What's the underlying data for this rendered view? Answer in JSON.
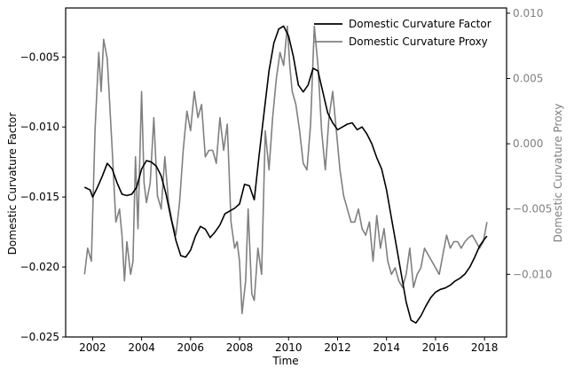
{
  "chart_data": {
    "type": "line",
    "xlabel": "Time",
    "ylabel_left": "Domestic Curvature Factor",
    "ylabel_right": "Domestic Curvature Proxy",
    "xlim": [
      2000.9,
      2018.9
    ],
    "ylim_left": [
      -0.025,
      -0.0015
    ],
    "ylim_right": [
      -0.0148,
      0.0104
    ],
    "x_ticks": [
      2002,
      2004,
      2006,
      2008,
      2010,
      2012,
      2014,
      2016,
      2018
    ],
    "x_tick_labels": [
      "2002",
      "2004",
      "2006",
      "2008",
      "2010",
      "2012",
      "2014",
      "2016",
      "2018"
    ],
    "y_left_ticks": [
      -0.025,
      -0.02,
      -0.015,
      -0.01,
      -0.005
    ],
    "y_left_tick_labels": [
      "−0.025",
      "−0.020",
      "−0.015",
      "−0.010",
      "−0.005"
    ],
    "y_right_ticks": [
      -0.01,
      -0.005,
      0.0,
      0.005,
      0.01
    ],
    "y_right_tick_labels": [
      "−0.010",
      "−0.005",
      "0.000",
      "0.005",
      "0.010"
    ],
    "grid": false,
    "legend_position": "top-right",
    "colors": {
      "factor": "#000000",
      "proxy": "#808080",
      "right_axis_text": "#808080"
    },
    "series": [
      {
        "name": "Domestic Curvature Factor",
        "axis": "left",
        "x": [
          2001.67,
          2001.9,
          2002.0,
          2002.2,
          2002.4,
          2002.6,
          2002.8,
          2003.0,
          2003.2,
          2003.4,
          2003.6,
          2003.8,
          2004.0,
          2004.2,
          2004.4,
          2004.6,
          2004.8,
          2005.0,
          2005.2,
          2005.4,
          2005.6,
          2005.8,
          2006.0,
          2006.2,
          2006.4,
          2006.6,
          2006.8,
          2007.0,
          2007.2,
          2007.4,
          2007.6,
          2007.8,
          2008.0,
          2008.2,
          2008.4,
          2008.6,
          2008.8,
          2009.0,
          2009.2,
          2009.4,
          2009.6,
          2009.8,
          2010.0,
          2010.2,
          2010.4,
          2010.6,
          2010.8,
          2011.0,
          2011.2,
          2011.4,
          2011.6,
          2011.8,
          2012.0,
          2012.2,
          2012.4,
          2012.6,
          2012.8,
          2013.0,
          2013.2,
          2013.4,
          2013.6,
          2013.8,
          2014.0,
          2014.2,
          2014.4,
          2014.6,
          2014.8,
          2015.0,
          2015.2,
          2015.4,
          2015.6,
          2015.8,
          2016.0,
          2016.2,
          2016.4,
          2016.6,
          2016.8,
          2017.0,
          2017.2,
          2017.4,
          2017.6,
          2017.8,
          2018.0,
          2018.1
        ],
        "values": [
          -0.0143,
          -0.0145,
          -0.015,
          -0.0143,
          -0.0135,
          -0.0126,
          -0.013,
          -0.014,
          -0.0148,
          -0.0149,
          -0.0148,
          -0.0143,
          -0.013,
          -0.0124,
          -0.0125,
          -0.0128,
          -0.0135,
          -0.0148,
          -0.0165,
          -0.0181,
          -0.0192,
          -0.0193,
          -0.0188,
          -0.0178,
          -0.0171,
          -0.0173,
          -0.0179,
          -0.0175,
          -0.017,
          -0.0162,
          -0.016,
          -0.0158,
          -0.0155,
          -0.0141,
          -0.0142,
          -0.0152,
          -0.012,
          -0.009,
          -0.006,
          -0.004,
          -0.003,
          -0.0028,
          -0.0035,
          -0.005,
          -0.007,
          -0.0075,
          -0.007,
          -0.0058,
          -0.006,
          -0.0075,
          -0.009,
          -0.0097,
          -0.0102,
          -0.01,
          -0.0098,
          -0.0097,
          -0.0102,
          -0.01,
          -0.0105,
          -0.0112,
          -0.0122,
          -0.013,
          -0.0145,
          -0.0165,
          -0.0185,
          -0.0205,
          -0.0225,
          -0.0238,
          -0.024,
          -0.0235,
          -0.0228,
          -0.0222,
          -0.0218,
          -0.0216,
          -0.0215,
          -0.0213,
          -0.021,
          -0.0208,
          -0.0205,
          -0.02,
          -0.0193,
          -0.0185,
          -0.018,
          -0.0178
        ]
      },
      {
        "name": "Domestic Curvature Proxy",
        "axis": "right",
        "x": [
          2001.67,
          2001.8,
          2001.95,
          2002.1,
          2002.25,
          2002.35,
          2002.45,
          2002.6,
          2002.8,
          2002.95,
          2003.1,
          2003.2,
          2003.3,
          2003.4,
          2003.55,
          2003.65,
          2003.75,
          2003.85,
          2004.0,
          2004.1,
          2004.2,
          2004.35,
          2004.5,
          2004.65,
          2004.8,
          2004.95,
          2005.1,
          2005.25,
          2005.4,
          2005.55,
          2005.7,
          2005.85,
          2006.0,
          2006.15,
          2006.3,
          2006.45,
          2006.6,
          2006.75,
          2006.9,
          2007.05,
          2007.2,
          2007.35,
          2007.5,
          2007.65,
          2007.8,
          2007.9,
          2008.0,
          2008.1,
          2008.25,
          2008.35,
          2008.5,
          2008.6,
          2008.75,
          2008.9,
          2009.05,
          2009.2,
          2009.35,
          2009.5,
          2009.65,
          2009.8,
          2009.95,
          2010.05,
          2010.15,
          2010.3,
          2010.45,
          2010.6,
          2010.75,
          2010.9,
          2011.05,
          2011.2,
          2011.35,
          2011.5,
          2011.65,
          2011.8,
          2011.95,
          2012.1,
          2012.25,
          2012.4,
          2012.55,
          2012.7,
          2012.85,
          2013.0,
          2013.15,
          2013.3,
          2013.45,
          2013.6,
          2013.75,
          2013.9,
          2014.05,
          2014.2,
          2014.35,
          2014.5,
          2014.65,
          2014.8,
          2014.95,
          2015.1,
          2015.25,
          2015.4,
          2015.55,
          2015.7,
          2015.85,
          2016.0,
          2016.15,
          2016.3,
          2016.45,
          2016.6,
          2016.75,
          2016.9,
          2017.05,
          2017.2,
          2017.35,
          2017.5,
          2017.65,
          2017.8,
          2017.95,
          2018.1
        ],
        "values": [
          -0.01,
          -0.008,
          -0.009,
          0.001,
          0.007,
          0.004,
          0.008,
          0.0065,
          -0.0005,
          -0.006,
          -0.005,
          -0.007,
          -0.0105,
          -0.0075,
          -0.01,
          -0.009,
          -0.001,
          -0.0065,
          0.004,
          -0.003,
          -0.0045,
          -0.003,
          0.002,
          -0.004,
          -0.005,
          -0.001,
          -0.0045,
          -0.006,
          -0.007,
          -0.0045,
          -0.0005,
          0.0025,
          0.001,
          0.004,
          0.002,
          0.003,
          -0.001,
          -0.0005,
          -0.0005,
          -0.0015,
          0.002,
          -0.0005,
          0.0015,
          -0.006,
          -0.008,
          -0.0075,
          -0.009,
          -0.013,
          -0.0105,
          -0.005,
          -0.0115,
          -0.012,
          -0.008,
          -0.01,
          0.001,
          -0.002,
          0.002,
          0.005,
          0.007,
          0.006,
          0.009,
          0.006,
          0.004,
          0.003,
          0.001,
          -0.0015,
          -0.002,
          0.0015,
          0.009,
          0.006,
          0.001,
          -0.002,
          0.002,
          0.004,
          0.001,
          -0.002,
          -0.004,
          -0.005,
          -0.006,
          -0.006,
          -0.005,
          -0.0065,
          -0.007,
          -0.006,
          -0.009,
          -0.0055,
          -0.008,
          -0.0065,
          -0.009,
          -0.01,
          -0.0095,
          -0.0105,
          -0.011,
          -0.01,
          -0.008,
          -0.011,
          -0.01,
          -0.0095,
          -0.008,
          -0.0085,
          -0.009,
          -0.0095,
          -0.01,
          -0.0085,
          -0.007,
          -0.008,
          -0.0075,
          -0.0075,
          -0.008,
          -0.0075,
          -0.0072,
          -0.007,
          -0.0075,
          -0.008,
          -0.0075,
          -0.006
        ]
      }
    ]
  }
}
